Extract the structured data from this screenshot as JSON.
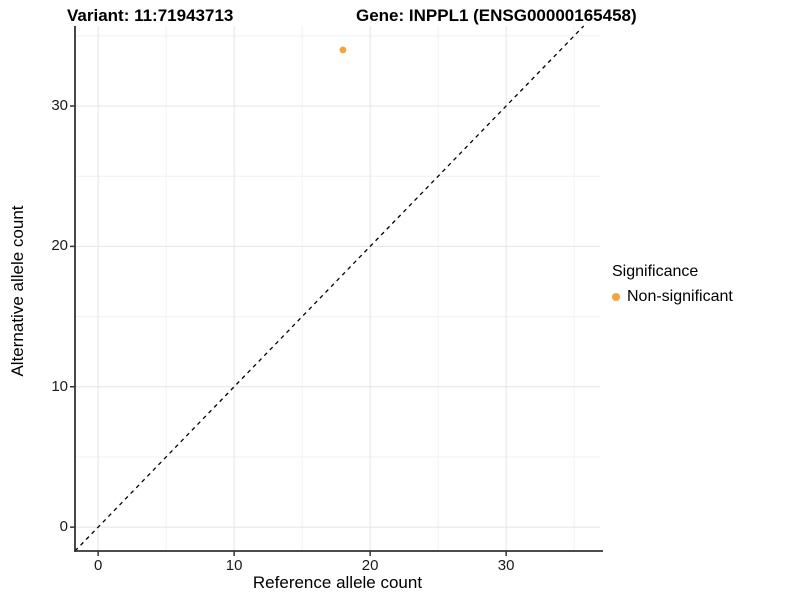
{
  "titles": {
    "variant": "Variant: 11:71943713",
    "gene": "Gene: INPPL1 (ENSG00000165458)"
  },
  "x_axis": {
    "label": "Reference allele count"
  },
  "y_axis": {
    "label": "Alternative allele count"
  },
  "legend": {
    "title": "Significance",
    "items": [
      {
        "label": "Non-significant",
        "color": "#FAA13C"
      }
    ]
  },
  "colors": {
    "point": "#FAA13C",
    "grid_major": "#e4e4e4",
    "grid_minor": "#f1f1f1",
    "axis": "#333333",
    "abline": "#000000"
  },
  "chart_data": {
    "type": "scatter",
    "title": "Variant: 11:71943713   |   Gene: INPPL1 (ENSG00000165458)",
    "xlabel": "Reference allele count",
    "ylabel": "Alternative allele count",
    "xlim": [
      -1.7,
      36.9
    ],
    "ylim": [
      -1.7,
      35.7
    ],
    "x_ticks": [
      0,
      10,
      20,
      30
    ],
    "y_ticks": [
      0,
      10,
      20,
      30
    ],
    "x_minor_ticks": [
      5,
      15,
      25,
      35
    ],
    "y_minor_ticks": [
      5,
      15,
      25,
      35
    ],
    "grid": true,
    "legend_title": "Significance",
    "legend_position": "right",
    "series": [
      {
        "name": "Non-significant",
        "color": "#FAA13C",
        "points": [
          {
            "x": 18,
            "y": 34
          }
        ]
      }
    ],
    "reference_line": {
      "type": "identity",
      "slope": 1,
      "intercept": 0,
      "style": "dashed",
      "color": "#000000"
    }
  }
}
